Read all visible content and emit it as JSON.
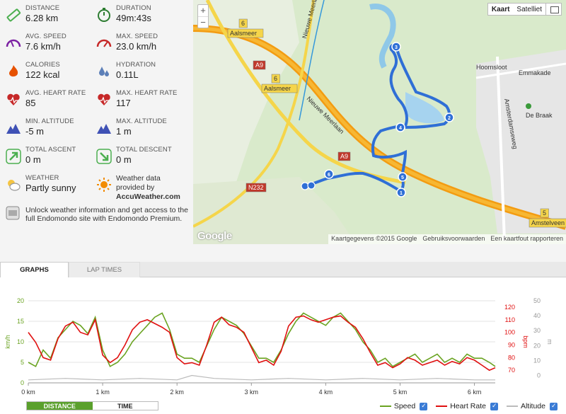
{
  "stats": [
    {
      "label": "DISTANCE",
      "value": "6.28 km",
      "icon": "ruler-icon",
      "color": "#4caf50"
    },
    {
      "label": "DURATION",
      "value": "49m:43s",
      "icon": "stopwatch-icon",
      "color": "#2e7d32"
    },
    {
      "label": "AVG. SPEED",
      "value": "7.6 km/h",
      "icon": "speedometer-icon",
      "color": "#7b1fa2"
    },
    {
      "label": "MAX. SPEED",
      "value": "23.0 km/h",
      "icon": "speedometer-max-icon",
      "color": "#c62828"
    },
    {
      "label": "CALORIES",
      "value": "122 kcal",
      "icon": "flame-icon",
      "color": "#e65100"
    },
    {
      "label": "HYDRATION",
      "value": "0.11L",
      "icon": "water-drops-icon",
      "color": "#5c7fb8"
    },
    {
      "label": "AVG. HEART RATE",
      "value": "85",
      "icon": "heart-icon",
      "color": "#c62828"
    },
    {
      "label": "MAX. HEART RATE",
      "value": "117",
      "icon": "heart-pulse-icon",
      "color": "#c62828"
    },
    {
      "label": "MIN. ALTITUDE",
      "value": "-5 m",
      "icon": "mountain-icon",
      "color": "#3f51b5"
    },
    {
      "label": "MAX. ALTITUDE",
      "value": "1 m",
      "icon": "mountain-icon",
      "color": "#3f51b5"
    },
    {
      "label": "TOTAL ASCENT",
      "value": "0 m",
      "icon": "arrow-up-right-icon",
      "color": "#4caf50"
    },
    {
      "label": "TOTAL DESCENT",
      "value": "0 m",
      "icon": "arrow-down-right-icon",
      "color": "#4caf50"
    },
    {
      "label": "WEATHER",
      "value": "Partly sunny",
      "icon": "partly-sunny-icon",
      "color": "#999999"
    }
  ],
  "weather_credit": {
    "line1": "Weather data",
    "line2": "provided by",
    "brand": "AccuWeather.com"
  },
  "unlock_text": "Unlock weather information and get access to the full Endomondo site with Endomondo Premium.",
  "map": {
    "zoom_in": "+",
    "zoom_out": "−",
    "type_map": "Kaart",
    "type_satellite": "Satelliet",
    "logo": "Google",
    "footer": [
      "Kaartgegevens ©2015 Google",
      "Gebruiksvoorwaarden",
      "Een kaartfout rapporteren"
    ],
    "labels": {
      "aalsmeer1": "Aalsmeer",
      "aalsmeer2": "Aalsmeer",
      "nieuwe_meerlaan1": "Nieuwe Meerlaan",
      "nieuwe_meerlaan2": "Nieuwe Meerlaan",
      "a9_1": "A9",
      "a9_2": "A9",
      "n232": "N232",
      "hoornsloot": "Hoornsloot",
      "emmakade": "Emmakade",
      "amsterdamseweg": "Amsterdamseweg",
      "de_braak": "De Braak",
      "amstelveen": "Amstelveen",
      "exit6a": "6",
      "exit6b": "6",
      "exit5": "5"
    },
    "markers": [
      "1",
      "2",
      "3",
      "4",
      "5",
      "6"
    ]
  },
  "tabs": {
    "graphs": "GRAPHS",
    "lap_times": "LAP TIMES"
  },
  "toggle": {
    "distance": "DISTANCE",
    "time": "TIME"
  },
  "legend": [
    {
      "name": "Speed",
      "color": "#6aa321"
    },
    {
      "name": "Heart Rate",
      "color": "#e01010"
    },
    {
      "name": "Altitude",
      "color": "#bbbbbb"
    }
  ],
  "axis_titles": {
    "left": "km/h",
    "right1": "bpm",
    "right2": "m"
  },
  "chart_data": {
    "type": "line",
    "x_unit": "km",
    "x_ticks": [
      "0 km",
      "1 km",
      "2 km",
      "3 km",
      "4 km",
      "5 km",
      "6 km"
    ],
    "xlim": [
      0,
      6.28
    ],
    "y_left": {
      "label": "km/h",
      "ticks": [
        0,
        5,
        10,
        15,
        20
      ],
      "ylim": [
        0,
        20
      ]
    },
    "y_right_hr": {
      "label": "bpm",
      "ticks": [
        70,
        80,
        90,
        100,
        110,
        120
      ],
      "ylim": [
        60,
        125
      ]
    },
    "y_right_alt": {
      "label": "m",
      "ticks": [
        0,
        10,
        20,
        30,
        40,
        50
      ],
      "ylim": [
        -5,
        50
      ]
    },
    "series": [
      {
        "name": "Speed",
        "axis": "left",
        "color": "#6aa321",
        "x": [
          0,
          0.1,
          0.2,
          0.3,
          0.4,
          0.5,
          0.6,
          0.7,
          0.8,
          0.9,
          1.0,
          1.1,
          1.2,
          1.3,
          1.4,
          1.5,
          1.6,
          1.7,
          1.8,
          1.9,
          2.0,
          2.1,
          2.2,
          2.3,
          2.4,
          2.5,
          2.6,
          2.7,
          2.8,
          2.9,
          3.0,
          3.1,
          3.2,
          3.3,
          3.4,
          3.5,
          3.6,
          3.7,
          3.8,
          3.9,
          4.0,
          4.1,
          4.2,
          4.3,
          4.4,
          4.5,
          4.6,
          4.7,
          4.8,
          4.9,
          5.0,
          5.1,
          5.2,
          5.3,
          5.4,
          5.5,
          5.6,
          5.7,
          5.8,
          5.9,
          6.0,
          6.1,
          6.2,
          6.28
        ],
        "values": [
          5,
          4,
          8,
          6,
          11,
          13,
          15,
          14,
          12,
          16,
          8,
          4,
          5,
          7,
          10,
          12,
          14,
          16,
          17,
          13,
          7,
          6,
          6,
          5,
          9,
          13,
          16,
          15,
          14,
          12,
          9,
          6,
          6,
          5,
          8,
          12,
          15,
          17,
          16,
          15,
          14,
          16,
          17,
          15,
          13,
          10,
          8,
          5,
          6,
          4,
          5,
          6,
          7,
          5,
          6,
          7,
          5,
          6,
          5,
          7,
          6,
          6,
          5,
          4
        ]
      },
      {
        "name": "Heart Rate",
        "axis": "right_hr",
        "color": "#e01010",
        "x": [
          0,
          0.1,
          0.2,
          0.3,
          0.4,
          0.5,
          0.6,
          0.7,
          0.8,
          0.9,
          1.0,
          1.1,
          1.2,
          1.3,
          1.4,
          1.5,
          1.6,
          1.7,
          1.8,
          1.9,
          2.0,
          2.1,
          2.2,
          2.3,
          2.4,
          2.5,
          2.6,
          2.7,
          2.8,
          2.9,
          3.0,
          3.1,
          3.2,
          3.3,
          3.4,
          3.5,
          3.6,
          3.7,
          3.8,
          3.9,
          4.0,
          4.1,
          4.2,
          4.3,
          4.4,
          4.5,
          4.6,
          4.7,
          4.8,
          4.9,
          5.0,
          5.1,
          5.2,
          5.3,
          5.4,
          5.5,
          5.6,
          5.7,
          5.8,
          5.9,
          6.0,
          6.1,
          6.2,
          6.28
        ],
        "values": [
          100,
          92,
          80,
          78,
          95,
          105,
          108,
          100,
          98,
          110,
          82,
          76,
          80,
          90,
          102,
          108,
          110,
          107,
          104,
          100,
          80,
          75,
          76,
          74,
          90,
          108,
          112,
          106,
          104,
          100,
          88,
          76,
          78,
          74,
          85,
          105,
          112,
          113,
          110,
          108,
          110,
          112,
          113,
          108,
          104,
          95,
          84,
          74,
          76,
          72,
          75,
          80,
          78,
          74,
          76,
          78,
          74,
          77,
          75,
          80,
          78,
          74,
          70,
          72
        ]
      },
      {
        "name": "Altitude",
        "axis": "right_alt",
        "color": "#bbbbbb",
        "x": [
          0,
          0.5,
          1.0,
          1.5,
          2.0,
          2.2,
          2.5,
          3.0,
          3.5,
          4.0,
          4.5,
          5.0,
          5.5,
          6.0,
          6.28
        ],
        "values": [
          -3,
          -2,
          -3,
          -2,
          -3,
          0,
          -2,
          -3,
          -2,
          -3,
          -2,
          -3,
          -2,
          -3,
          -3
        ]
      }
    ],
    "legend_position": "bottom-right",
    "grid": true
  }
}
